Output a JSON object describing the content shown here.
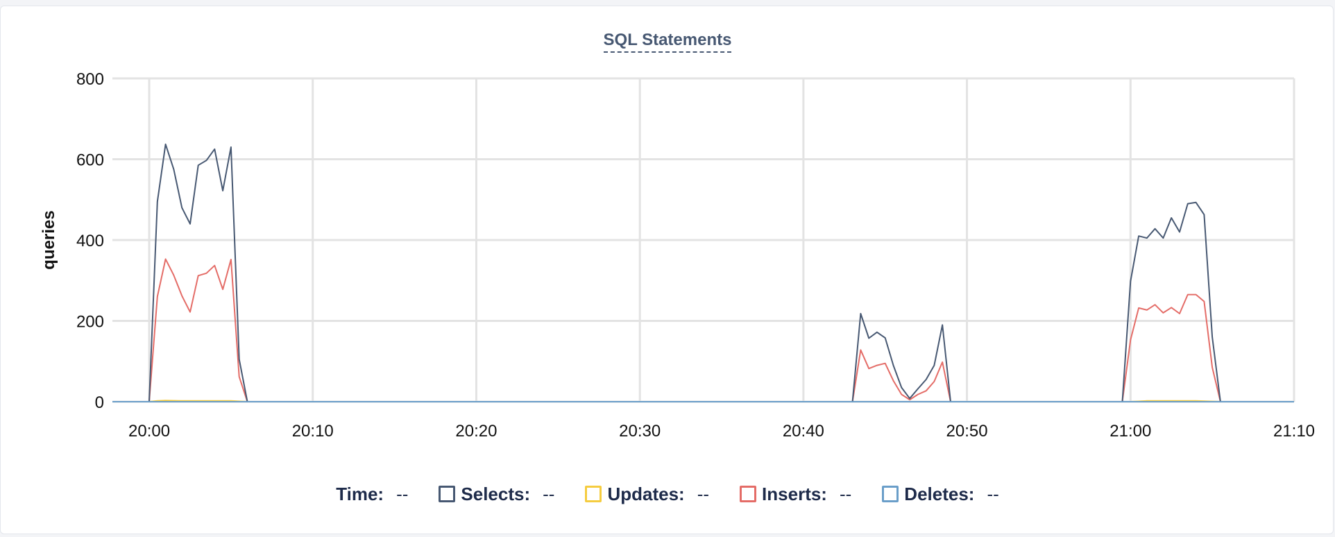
{
  "chart_data": {
    "type": "line",
    "title": "SQL Statements",
    "ylabel": "queries",
    "xlabel": "",
    "ylim": [
      0,
      800
    ],
    "yticks": [
      "0",
      "200",
      "400",
      "600",
      "800"
    ],
    "xticks": [
      "20:00",
      "20:10",
      "20:20",
      "20:30",
      "20:40",
      "20:50",
      "21:00",
      "21:10"
    ],
    "xlim": [
      "19:57:45",
      "21:10:00"
    ],
    "grid": true,
    "series": [
      {
        "name": "Selects",
        "color": "#475872",
        "points": [
          [
            "19:57:45",
            0
          ],
          [
            "20:00:00",
            0
          ],
          [
            "20:00:30",
            495
          ],
          [
            "20:01:00",
            637
          ],
          [
            "20:01:30",
            575
          ],
          [
            "20:02:00",
            480
          ],
          [
            "20:02:30",
            440
          ],
          [
            "20:03:00",
            585
          ],
          [
            "20:03:30",
            597
          ],
          [
            "20:04:00",
            625
          ],
          [
            "20:04:30",
            522
          ],
          [
            "20:05:00",
            630
          ],
          [
            "20:05:30",
            105
          ],
          [
            "20:06:00",
            0
          ],
          [
            "20:43:00",
            0
          ],
          [
            "20:43:30",
            218
          ],
          [
            "20:44:00",
            157
          ],
          [
            "20:44:30",
            172
          ],
          [
            "20:45:00",
            158
          ],
          [
            "20:45:30",
            90
          ],
          [
            "20:46:00",
            35
          ],
          [
            "20:46:30",
            8
          ],
          [
            "20:47:00",
            32
          ],
          [
            "20:47:30",
            55
          ],
          [
            "20:48:00",
            90
          ],
          [
            "20:48:30",
            190
          ],
          [
            "20:49:00",
            0
          ],
          [
            "20:59:30",
            0
          ],
          [
            "21:00:00",
            298
          ],
          [
            "21:00:30",
            410
          ],
          [
            "21:01:00",
            405
          ],
          [
            "21:01:30",
            428
          ],
          [
            "21:02:00",
            405
          ],
          [
            "21:02:30",
            455
          ],
          [
            "21:03:00",
            420
          ],
          [
            "21:03:30",
            490
          ],
          [
            "21:04:00",
            493
          ],
          [
            "21:04:30",
            463
          ],
          [
            "21:05:00",
            160
          ],
          [
            "21:05:30",
            0
          ],
          [
            "21:10:00",
            0
          ]
        ]
      },
      {
        "name": "Updates",
        "color": "#f5cc3f",
        "points": [
          [
            "19:57:45",
            0
          ],
          [
            "20:00:00",
            0
          ],
          [
            "20:00:30",
            2
          ],
          [
            "20:01:00",
            3
          ],
          [
            "20:02:00",
            2
          ],
          [
            "20:05:00",
            2
          ],
          [
            "20:06:00",
            0
          ],
          [
            "21:00:00",
            0
          ],
          [
            "21:01:00",
            2
          ],
          [
            "21:04:00",
            2
          ],
          [
            "21:05:30",
            0
          ],
          [
            "21:10:00",
            0
          ]
        ]
      },
      {
        "name": "Inserts",
        "color": "#e46c67",
        "points": [
          [
            "19:57:45",
            0
          ],
          [
            "20:00:00",
            0
          ],
          [
            "20:00:30",
            260
          ],
          [
            "20:01:00",
            353
          ],
          [
            "20:01:30",
            313
          ],
          [
            "20:02:00",
            262
          ],
          [
            "20:02:30",
            222
          ],
          [
            "20:03:00",
            312
          ],
          [
            "20:03:30",
            318
          ],
          [
            "20:04:00",
            337
          ],
          [
            "20:04:30",
            278
          ],
          [
            "20:05:00",
            352
          ],
          [
            "20:05:30",
            62
          ],
          [
            "20:06:00",
            0
          ],
          [
            "20:43:00",
            0
          ],
          [
            "20:43:30",
            128
          ],
          [
            "20:44:00",
            82
          ],
          [
            "20:44:30",
            90
          ],
          [
            "20:45:00",
            95
          ],
          [
            "20:45:30",
            52
          ],
          [
            "20:46:00",
            18
          ],
          [
            "20:46:30",
            5
          ],
          [
            "20:47:00",
            18
          ],
          [
            "20:47:30",
            27
          ],
          [
            "20:48:00",
            50
          ],
          [
            "20:48:30",
            98
          ],
          [
            "20:49:00",
            0
          ],
          [
            "20:59:30",
            0
          ],
          [
            "21:00:00",
            153
          ],
          [
            "21:00:30",
            232
          ],
          [
            "21:01:00",
            227
          ],
          [
            "21:01:30",
            240
          ],
          [
            "21:02:00",
            220
          ],
          [
            "21:02:30",
            233
          ],
          [
            "21:03:00",
            218
          ],
          [
            "21:03:30",
            265
          ],
          [
            "21:04:00",
            265
          ],
          [
            "21:04:30",
            248
          ],
          [
            "21:05:00",
            85
          ],
          [
            "21:05:30",
            0
          ],
          [
            "21:10:00",
            0
          ]
        ]
      },
      {
        "name": "Deletes",
        "color": "#6a9ec9",
        "points": [
          [
            "19:57:45",
            0
          ],
          [
            "21:10:00",
            0
          ]
        ]
      }
    ]
  },
  "legend": {
    "time_label": "Time:",
    "time_value": "--",
    "items": [
      {
        "label": "Selects:",
        "value": "--",
        "color": "#475872"
      },
      {
        "label": "Updates:",
        "value": "--",
        "color": "#f5cc3f"
      },
      {
        "label": "Inserts:",
        "value": "--",
        "color": "#e46c67"
      },
      {
        "label": "Deletes:",
        "value": "--",
        "color": "#6a9ec9"
      }
    ]
  }
}
